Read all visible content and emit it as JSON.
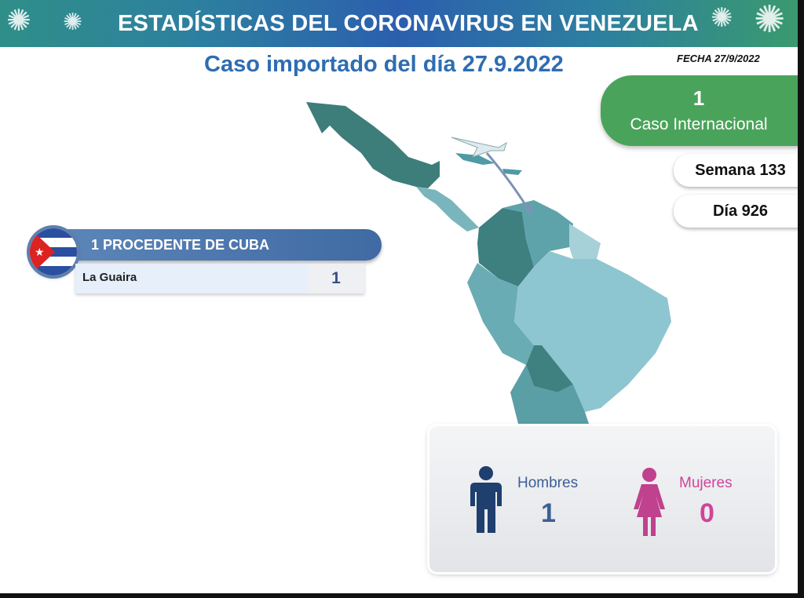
{
  "header": {
    "title": "ESTADÍSTICAS DEL CORONAVIRUS EN VENEZUELA"
  },
  "subtitle": "Caso importado del día 27.9.2022",
  "date": "FECHA 27/9/2022",
  "international": {
    "count": "1",
    "label": "Caso Internacional"
  },
  "week": "Semana 133",
  "day": "Día 926",
  "origin": {
    "title": "1 PROCEDENTE DE CUBA",
    "rows": [
      {
        "state": "La Guaira",
        "count": "1"
      }
    ]
  },
  "gender": {
    "men_label": "Hombres",
    "men_count": "1",
    "women_label": "Mujeres",
    "women_count": "0"
  },
  "colors": {
    "green": "#4aa35a",
    "blue_text": "#2e6db2",
    "men": "#1f3f6e",
    "women": "#c0418e"
  }
}
